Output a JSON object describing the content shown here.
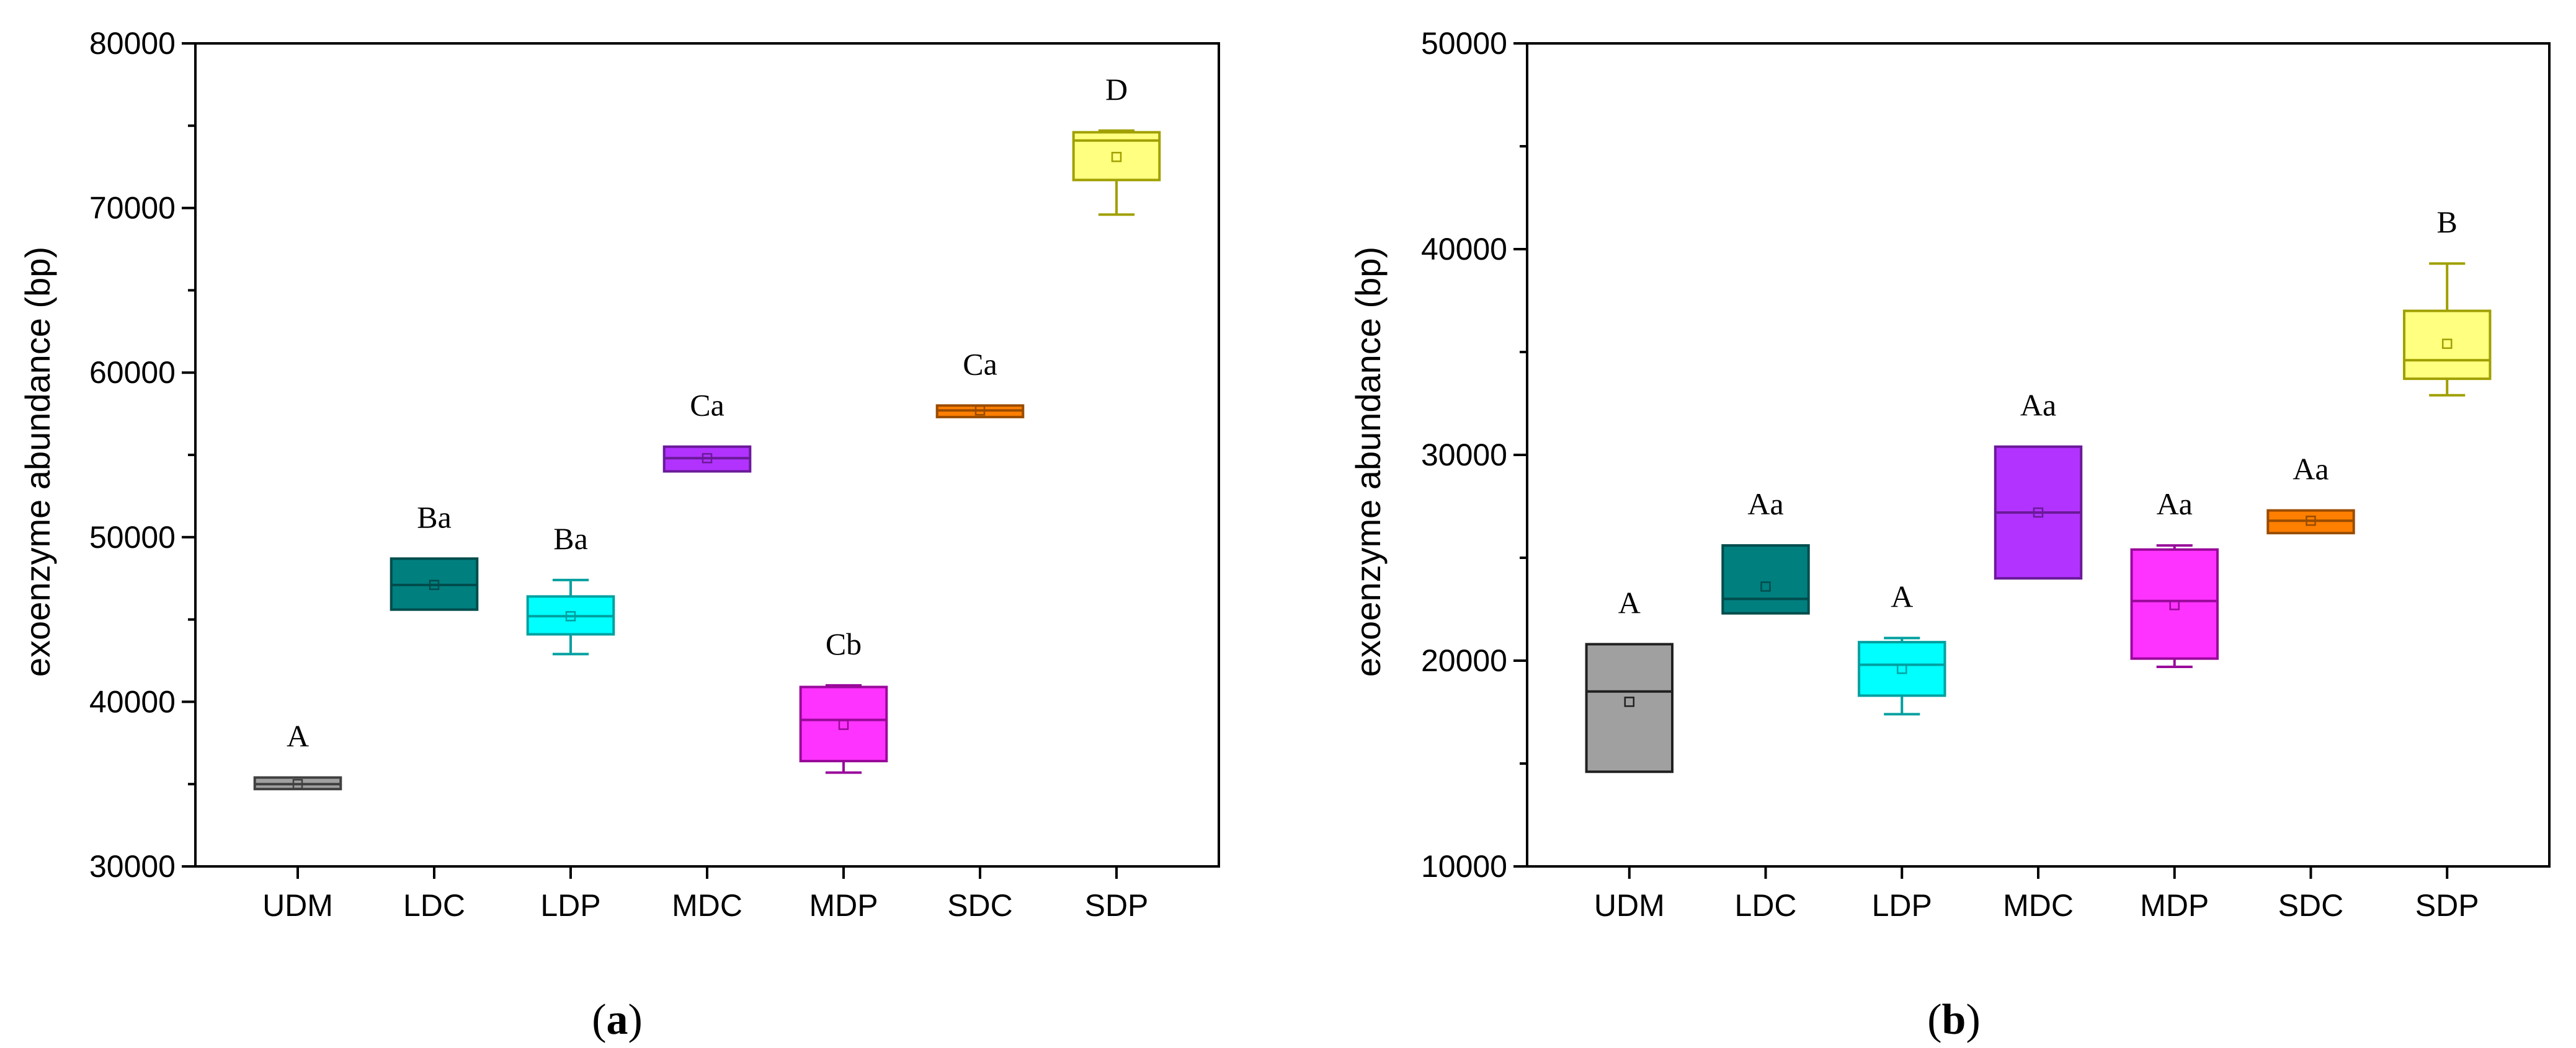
{
  "chart_data": [
    {
      "type": "box",
      "panel_label": "a",
      "title": "",
      "xlabel": "",
      "ylabel": "exoenzyme abundance (bp)",
      "ylim": [
        30000,
        80000
      ],
      "yticks": [
        30000,
        40000,
        50000,
        60000,
        70000,
        80000
      ],
      "ytick_labels": [
        "30000",
        "40000",
        "50000",
        "60000",
        "70000",
        "80000"
      ],
      "categories": [
        "UDM",
        "LDC",
        "LDP",
        "MDC",
        "MDP",
        "SDC",
        "SDP"
      ],
      "boxes": [
        {
          "category": "UDM",
          "min": 34700,
          "q1": 34700,
          "median": 35000,
          "q3": 35400,
          "max": 35400,
          "mean": 35000,
          "label": "A",
          "color": "#A0A0A0",
          "edge": "#404040"
        },
        {
          "category": "LDC",
          "min": 45600,
          "q1": 45600,
          "median": 47100,
          "q3": 48700,
          "max": 48700,
          "mean": 47100,
          "label": "Ba",
          "color": "#007F7F",
          "edge": "#004C4C"
        },
        {
          "category": "LDP",
          "min": 42900,
          "q1": 44100,
          "median": 45200,
          "q3": 46400,
          "max": 47400,
          "mean": 45200,
          "label": "Ba",
          "color": "#00FFFF",
          "edge": "#00A0A0"
        },
        {
          "category": "MDC",
          "min": 54000,
          "q1": 54000,
          "median": 54800,
          "q3": 55500,
          "max": 55500,
          "mean": 54800,
          "label": "Ca",
          "color": "#B233FF",
          "edge": "#6A1A99"
        },
        {
          "category": "MDP",
          "min": 35700,
          "q1": 36400,
          "median": 38900,
          "q3": 40900,
          "max": 41000,
          "mean": 38600,
          "label": "Cb",
          "color": "#FF33FF",
          "edge": "#99099A"
        },
        {
          "category": "SDC",
          "min": 57300,
          "q1": 57300,
          "median": 57700,
          "q3": 58000,
          "max": 58000,
          "mean": 57700,
          "label": "Ca",
          "color": "#FF7F00",
          "edge": "#994C00"
        },
        {
          "category": "SDP",
          "min": 69600,
          "q1": 71700,
          "median": 74100,
          "q3": 74600,
          "max": 74700,
          "mean": 73100,
          "label": "D",
          "color": "#FFFF80",
          "edge": "#A0A000"
        }
      ]
    },
    {
      "type": "box",
      "panel_label": "b",
      "title": "",
      "xlabel": "",
      "ylabel": "exoenzyme abundance (bp)",
      "ylim": [
        10000,
        50000
      ],
      "yticks": [
        10000,
        20000,
        30000,
        40000,
        50000
      ],
      "ytick_labels": [
        "10000",
        "20000",
        "30000",
        "40000",
        "50000"
      ],
      "categories": [
        "UDM",
        "LDC",
        "LDP",
        "MDC",
        "MDP",
        "SDC",
        "SDP"
      ],
      "boxes": [
        {
          "category": "UDM",
          "min": 14600,
          "q1": 14600,
          "median": 18500,
          "q3": 20800,
          "max": 20800,
          "mean": 18000,
          "label": "A",
          "color": "#A0A0A0",
          "edge": "#202020"
        },
        {
          "category": "LDC",
          "min": 22300,
          "q1": 22300,
          "median": 23000,
          "q3": 25600,
          "max": 25600,
          "mean": 23600,
          "label": "Aa",
          "color": "#007F7F",
          "edge": "#004C4C"
        },
        {
          "category": "LDP",
          "min": 17400,
          "q1": 18300,
          "median": 19800,
          "q3": 20900,
          "max": 21100,
          "mean": 19600,
          "label": "A",
          "color": "#00FFFF",
          "edge": "#00A0A0"
        },
        {
          "category": "MDC",
          "min": 24000,
          "q1": 24000,
          "median": 27200,
          "q3": 30400,
          "max": 30400,
          "mean": 27200,
          "label": "Aa",
          "color": "#B233FF",
          "edge": "#6A1A99"
        },
        {
          "category": "MDP",
          "min": 19700,
          "q1": 20100,
          "median": 22900,
          "q3": 25400,
          "max": 25600,
          "mean": 22700,
          "label": "Aa",
          "color": "#FF33FF",
          "edge": "#99099A"
        },
        {
          "category": "SDC",
          "min": 26200,
          "q1": 26200,
          "median": 26800,
          "q3": 27300,
          "max": 27300,
          "mean": 26800,
          "label": "Aa",
          "color": "#FF7F00",
          "edge": "#994C00"
        },
        {
          "category": "SDP",
          "min": 32900,
          "q1": 33700,
          "median": 34600,
          "q3": 37000,
          "max": 39300,
          "mean": 35400,
          "label": "B",
          "color": "#FFFF80",
          "edge": "#A0A000"
        }
      ]
    }
  ]
}
